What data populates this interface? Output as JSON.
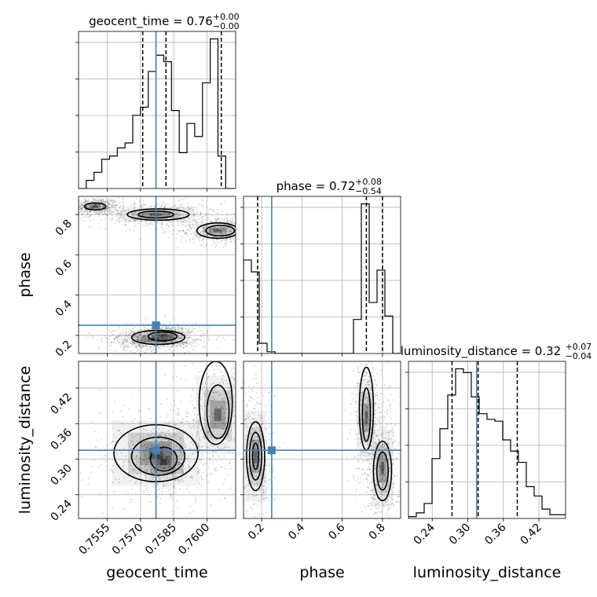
{
  "chart_data": {
    "type": "corner",
    "parameters": [
      {
        "name": "geocent_time",
        "xlim": [
          0.7542,
          0.7613
        ],
        "ticks": [
          "0.7555",
          "0.7570",
          "0.7585",
          "0.7600"
        ],
        "tick_values": [
          0.7555,
          0.757,
          0.7585,
          0.76
        ],
        "truth": 0.7577,
        "quantiles": [
          0.7571,
          0.75815,
          0.76065
        ],
        "title": "geocent_time = 0.76",
        "sup": "+0.00",
        "sub": "−0.00"
      },
      {
        "name": "phase",
        "xlim": [
          0.11,
          0.89
        ],
        "ticks": [
          "0.2",
          "0.4",
          "0.6",
          "0.8"
        ],
        "tick_values": [
          0.2,
          0.4,
          0.6,
          0.8
        ],
        "truth": 0.25,
        "quantiles": [
          0.18,
          0.72,
          0.8
        ],
        "title": "phase = 0.72",
        "sup": "+0.08",
        "sub": "−0.54"
      },
      {
        "name": "luminosity_distance",
        "xlim": [
          0.2,
          0.465
        ],
        "ticks": [
          "0.24",
          "0.30",
          "0.36",
          "0.42"
        ],
        "tick_values": [
          0.24,
          0.3,
          0.36,
          0.42
        ],
        "truth": 0.315,
        "quantiles": [
          0.2735,
          0.3175,
          0.3835
        ],
        "title": "luminosity_distance = 0.32",
        "sup": "+0.07",
        "sub": "−0.04"
      }
    ],
    "y_axes": {
      "phase": {
        "ylim": [
          0.11,
          0.89
        ],
        "ticks": [
          "0.2",
          "0.4",
          "0.6",
          "0.8"
        ],
        "tick_values": [
          0.2,
          0.4,
          0.6,
          0.8
        ]
      },
      "luminosity_distance": {
        "ylim": [
          0.2,
          0.465
        ],
        "ticks": [
          "0.24",
          "0.30",
          "0.36",
          "0.42"
        ],
        "tick_values": [
          0.24,
          0.3,
          0.36,
          0.42
        ]
      }
    },
    "histograms": {
      "geocent_time": {
        "edges_start": 0.7542,
        "bin_width": 0.00035,
        "counts": [
          0,
          0.05,
          0.1,
          0.18,
          0.2,
          0.25,
          0.28,
          0.45,
          0.5,
          0.72,
          0.82,
          0.78,
          0.48,
          0.22,
          0.4,
          0.32,
          0.65,
          0.92,
          0.2,
          0.0
        ]
      },
      "phase": {
        "edges_start": 0.11,
        "bin_width": 0.039,
        "counts": [
          0.55,
          0.48,
          0.06,
          0.01,
          0,
          0,
          0,
          0,
          0,
          0,
          0,
          0,
          0,
          0,
          0.2,
          0.88,
          0.3,
          0.49,
          0.22,
          0.0
        ]
      },
      "luminosity_distance": {
        "edges_start": 0.2,
        "bin_width": 0.01325,
        "counts": [
          0.01,
          0.03,
          0.08,
          0.32,
          0.48,
          0.66,
          0.8,
          0.78,
          0.65,
          0.56,
          0.53,
          0.52,
          0.42,
          0.36,
          0.3,
          0.17,
          0.12,
          0.05,
          0.02,
          0.02
        ]
      }
    },
    "density_modes": {
      "phase_vs_geocent_time": [
        {
          "x": 0.75495,
          "y": 0.84,
          "sx": 0.0003,
          "sy": 0.012
        },
        {
          "x": 0.7577,
          "y": 0.8,
          "sx": 0.0008,
          "sy": 0.018
        },
        {
          "x": 0.7605,
          "y": 0.72,
          "sx": 0.0005,
          "sy": 0.02
        },
        {
          "x": 0.7576,
          "y": 0.18,
          "sx": 0.0007,
          "sy": 0.018
        },
        {
          "x": 0.75805,
          "y": 0.2,
          "sx": 0.0004,
          "sy": 0.018
        }
      ],
      "luminosity_distance_vs_geocent_time": [
        {
          "x": 0.7577,
          "y": 0.31,
          "sx": 0.0009,
          "sy": 0.025
        },
        {
          "x": 0.75805,
          "y": 0.295,
          "sx": 0.0004,
          "sy": 0.014
        },
        {
          "x": 0.7605,
          "y": 0.375,
          "sx": 0.00045,
          "sy": 0.03
        }
      ],
      "luminosity_distance_vs_phase": [
        {
          "x": 0.17,
          "y": 0.305,
          "sx": 0.025,
          "sy": 0.035
        },
        {
          "x": 0.72,
          "y": 0.37,
          "sx": 0.02,
          "sy": 0.03
        },
        {
          "x": 0.8,
          "y": 0.285,
          "sx": 0.025,
          "sy": 0.03
        }
      ]
    },
    "contours": {
      "phase_vs_geocent_time": [
        {
          "cx": 0.75495,
          "cy": 0.84,
          "rx": 0.00048,
          "ry": 0.017,
          "rot": 0
        },
        {
          "cx": 0.7578,
          "cy": 0.8,
          "rx": 0.0014,
          "ry": 0.028,
          "rot": 0
        },
        {
          "cx": 0.7577,
          "cy": 0.8,
          "rx": 0.0008,
          "ry": 0.017,
          "rot": 0
        },
        {
          "cx": 0.7605,
          "cy": 0.72,
          "rx": 0.00095,
          "ry": 0.038,
          "rot": 0
        },
        {
          "cx": 0.7606,
          "cy": 0.72,
          "rx": 0.00065,
          "ry": 0.026,
          "rot": 0
        },
        {
          "cx": 0.7578,
          "cy": 0.19,
          "rx": 0.0012,
          "ry": 0.035,
          "rot": 0
        },
        {
          "cx": 0.758,
          "cy": 0.195,
          "rx": 0.00065,
          "ry": 0.022,
          "rot": 0
        }
      ],
      "luminosity_distance_vs_geocent_time": [
        {
          "cx": 0.7577,
          "cy": 0.31,
          "rx": 0.0019,
          "ry": 0.048,
          "rot": 0
        },
        {
          "cx": 0.7578,
          "cy": 0.305,
          "rx": 0.0012,
          "ry": 0.032,
          "rot": 0
        },
        {
          "cx": 0.75805,
          "cy": 0.3,
          "rx": 0.0006,
          "ry": 0.02,
          "rot": 0
        },
        {
          "cx": 0.7604,
          "cy": 0.395,
          "rx": 0.00075,
          "ry": 0.07,
          "rot": 0
        },
        {
          "cx": 0.7605,
          "cy": 0.38,
          "rx": 0.0005,
          "ry": 0.045,
          "rot": 0
        }
      ],
      "luminosity_distance_vs_phase": [
        {
          "cx": 0.17,
          "cy": 0.305,
          "rx": 0.045,
          "ry": 0.058,
          "rot": 0
        },
        {
          "cx": 0.17,
          "cy": 0.305,
          "rx": 0.03,
          "ry": 0.04,
          "rot": 0
        },
        {
          "cx": 0.17,
          "cy": 0.305,
          "rx": 0.015,
          "ry": 0.022,
          "rot": 0
        },
        {
          "cx": 0.72,
          "cy": 0.385,
          "rx": 0.035,
          "ry": 0.07,
          "rot": 0
        },
        {
          "cx": 0.72,
          "cy": 0.375,
          "rx": 0.02,
          "ry": 0.045,
          "rot": 0
        },
        {
          "cx": 0.8,
          "cy": 0.28,
          "rx": 0.045,
          "ry": 0.05,
          "rot": 0
        },
        {
          "cx": 0.8,
          "cy": 0.28,
          "rx": 0.028,
          "ry": 0.032,
          "rot": 0
        }
      ]
    },
    "grid": true,
    "truth_color": "#4682b4",
    "quantile_style": "dashed",
    "hist_color": "#000000"
  }
}
